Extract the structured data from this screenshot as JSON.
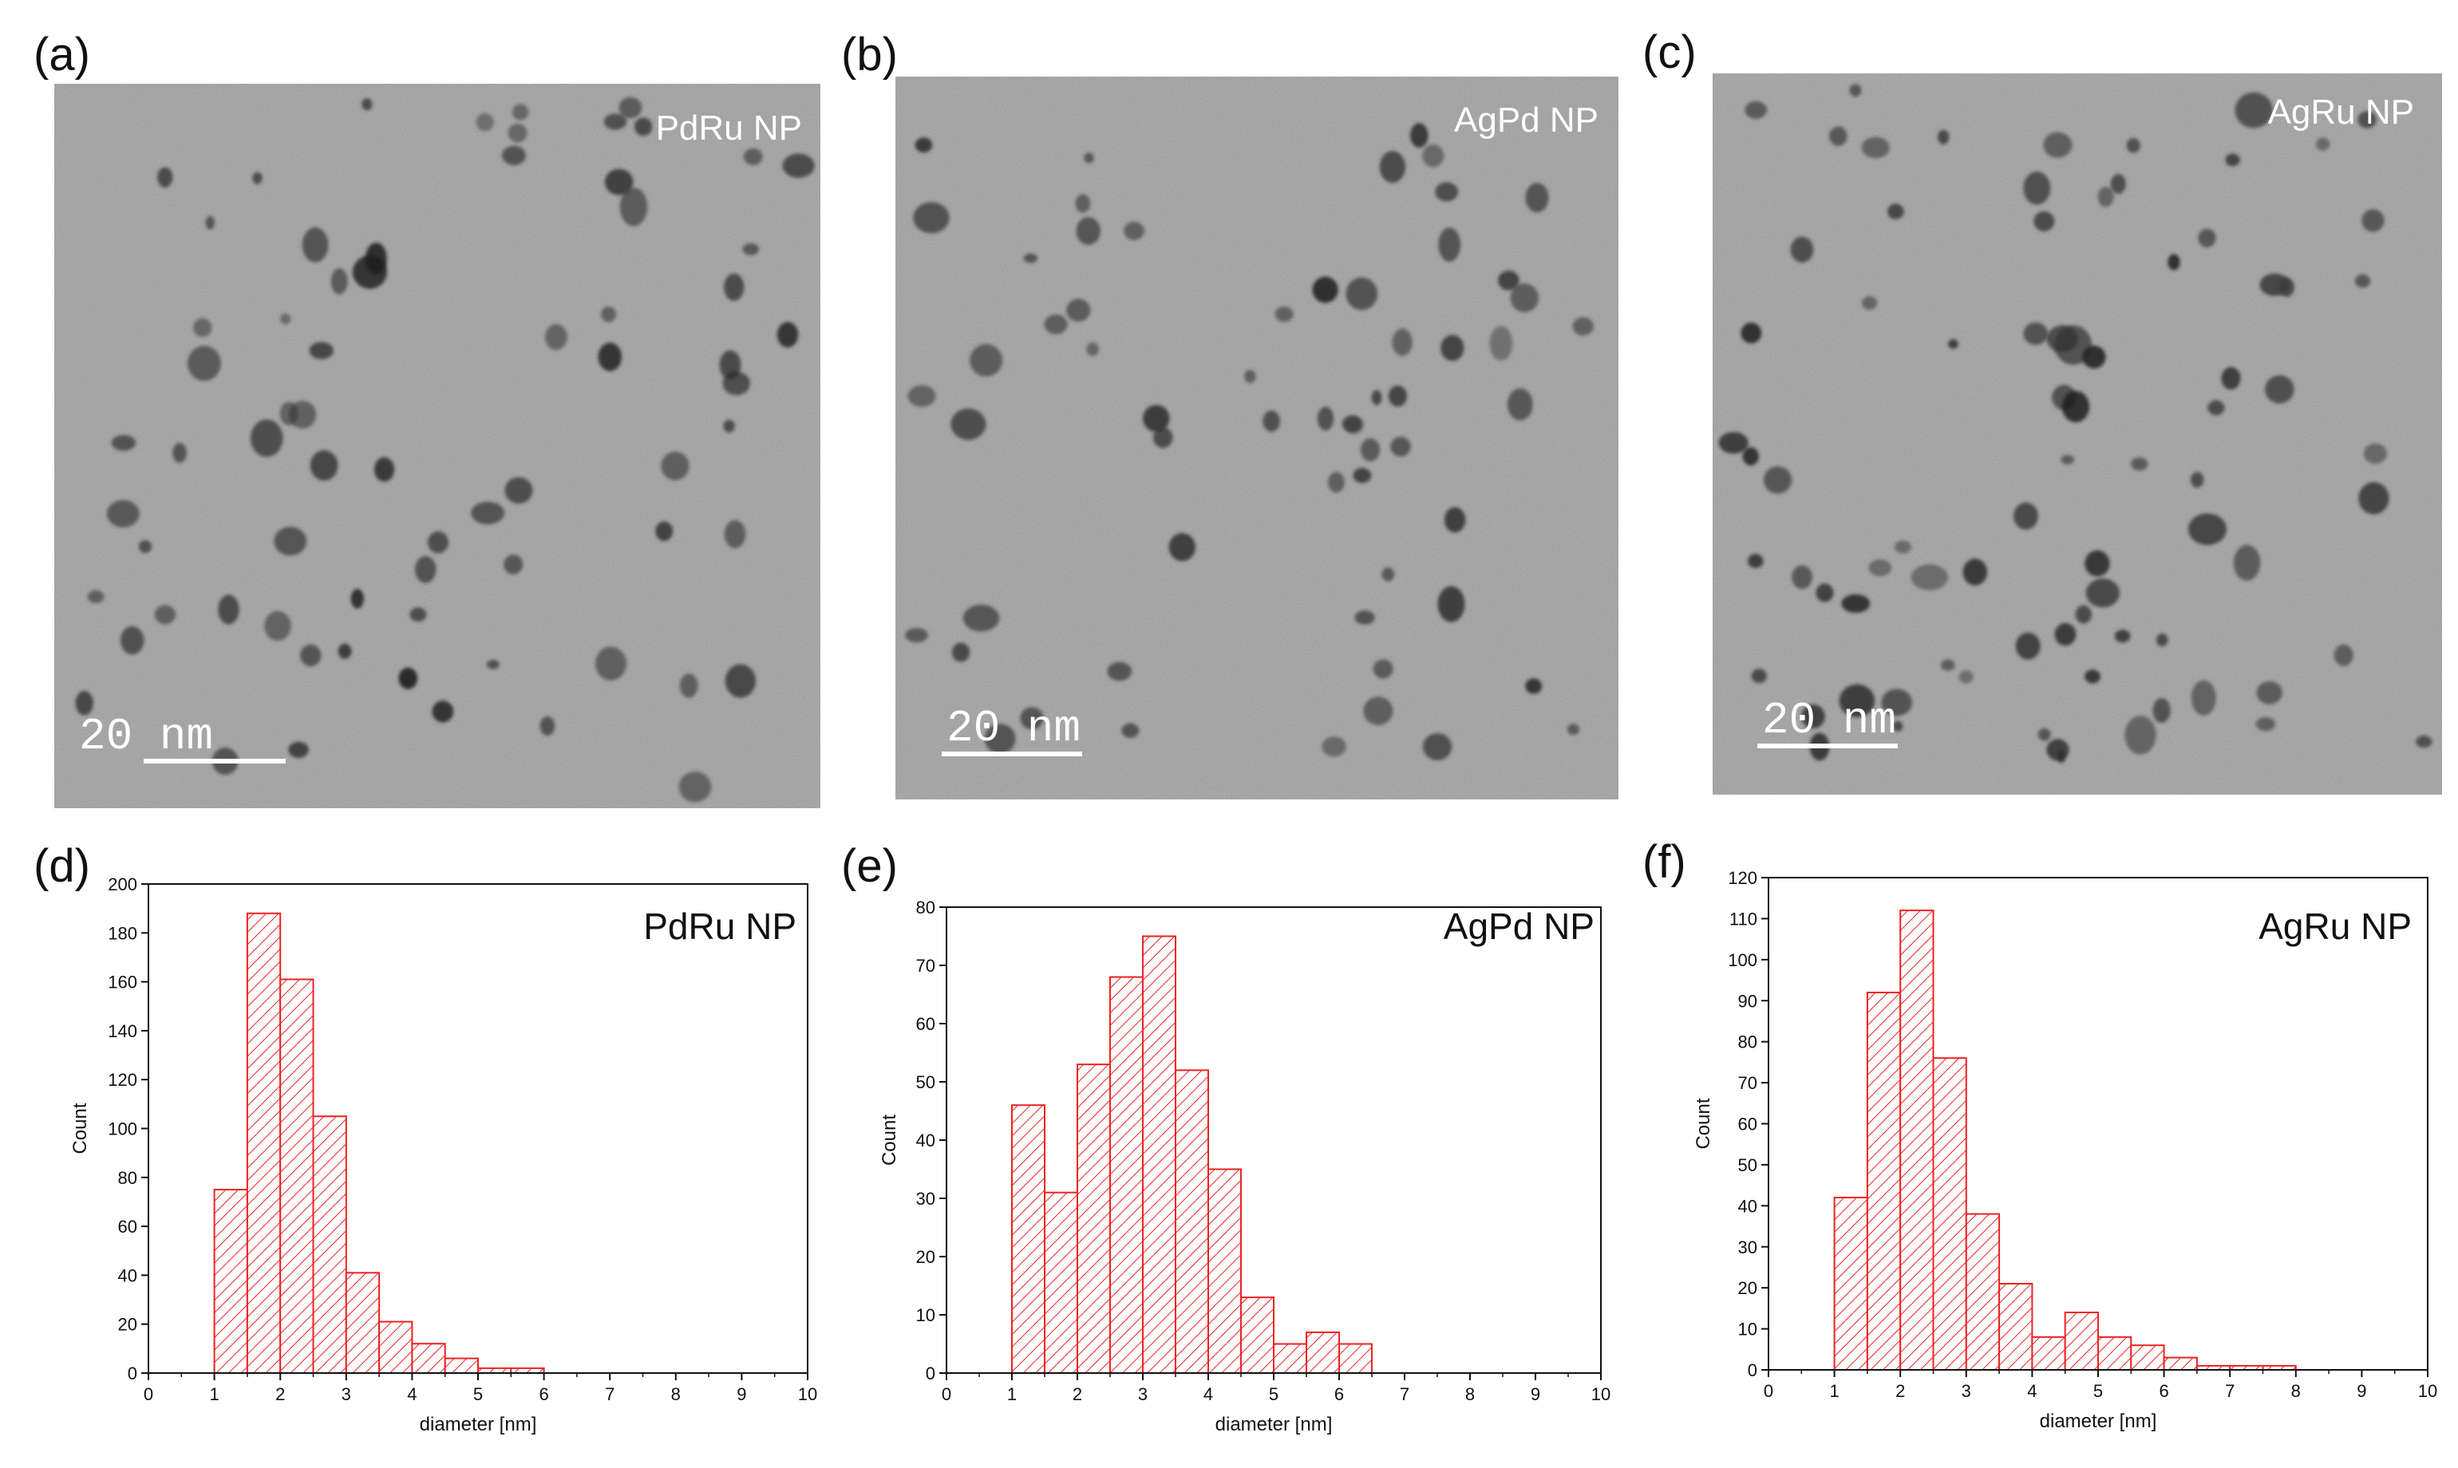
{
  "colors": {
    "bar": "#ee2222",
    "tem_background": "#8e8e8e",
    "particle": "#2d2d2d"
  },
  "tem_panels": [
    {
      "letter": "(a)",
      "label": "PdRu NP",
      "scale_text": "20 nm"
    },
    {
      "letter": "(b)",
      "label": "AgPd NP",
      "scale_text": "20 nm"
    },
    {
      "letter": "(c)",
      "label": "AgRu NP",
      "scale_text": "20 nm"
    }
  ],
  "chart_data": [
    {
      "type": "bar",
      "panel": "(d)",
      "title": "PdRu NP",
      "xlabel": "diameter [nm]",
      "ylabel": "Count",
      "xlim": [
        0,
        10
      ],
      "ylim": [
        0,
        200
      ],
      "xticks": [
        0,
        1,
        2,
        3,
        4,
        5,
        6,
        7,
        8,
        9,
        10
      ],
      "yticks": [
        0,
        20,
        40,
        60,
        80,
        100,
        120,
        140,
        160,
        180,
        200
      ],
      "bin_width": 0.5,
      "bins": [
        {
          "start": 1.0,
          "count": 75
        },
        {
          "start": 1.5,
          "count": 188
        },
        {
          "start": 2.0,
          "count": 161
        },
        {
          "start": 2.5,
          "count": 105
        },
        {
          "start": 3.0,
          "count": 41
        },
        {
          "start": 3.5,
          "count": 21
        },
        {
          "start": 4.0,
          "count": 12
        },
        {
          "start": 4.5,
          "count": 6
        },
        {
          "start": 5.0,
          "count": 2
        },
        {
          "start": 5.5,
          "count": 2
        }
      ]
    },
    {
      "type": "bar",
      "panel": "(e)",
      "title": "AgPd NP",
      "xlabel": "diameter [nm]",
      "ylabel": "Count",
      "xlim": [
        0,
        10
      ],
      "ylim": [
        0,
        80
      ],
      "xticks": [
        0,
        1,
        2,
        3,
        4,
        5,
        6,
        7,
        8,
        9,
        10
      ],
      "yticks": [
        0,
        10,
        20,
        30,
        40,
        50,
        60,
        70,
        80
      ],
      "bin_width": 0.5,
      "bins": [
        {
          "start": 1.0,
          "count": 46
        },
        {
          "start": 1.5,
          "count": 31
        },
        {
          "start": 2.0,
          "count": 53
        },
        {
          "start": 2.5,
          "count": 68
        },
        {
          "start": 3.0,
          "count": 75
        },
        {
          "start": 3.5,
          "count": 52
        },
        {
          "start": 4.0,
          "count": 35
        },
        {
          "start": 4.5,
          "count": 13
        },
        {
          "start": 5.0,
          "count": 5
        },
        {
          "start": 5.5,
          "count": 7
        },
        {
          "start": 6.0,
          "count": 5
        }
      ]
    },
    {
      "type": "bar",
      "panel": "(f)",
      "title": "AgRu NP",
      "xlabel": "diameter [nm]",
      "ylabel": "Count",
      "xlim": [
        0,
        10
      ],
      "ylim": [
        0,
        120
      ],
      "xticks": [
        0,
        1,
        2,
        3,
        4,
        5,
        6,
        7,
        8,
        9,
        10
      ],
      "yticks": [
        0,
        10,
        20,
        30,
        40,
        50,
        60,
        70,
        80,
        90,
        100,
        110,
        120
      ],
      "bin_width": 0.5,
      "bins": [
        {
          "start": 1.0,
          "count": 42
        },
        {
          "start": 1.5,
          "count": 92
        },
        {
          "start": 2.0,
          "count": 112
        },
        {
          "start": 2.5,
          "count": 76
        },
        {
          "start": 3.0,
          "count": 38
        },
        {
          "start": 3.5,
          "count": 21
        },
        {
          "start": 4.0,
          "count": 8
        },
        {
          "start": 4.5,
          "count": 14
        },
        {
          "start": 5.0,
          "count": 8
        },
        {
          "start": 5.5,
          "count": 6
        },
        {
          "start": 6.0,
          "count": 3
        },
        {
          "start": 6.5,
          "count": 1
        },
        {
          "start": 7.0,
          "count": 1
        },
        {
          "start": 7.5,
          "count": 1
        }
      ]
    }
  ]
}
